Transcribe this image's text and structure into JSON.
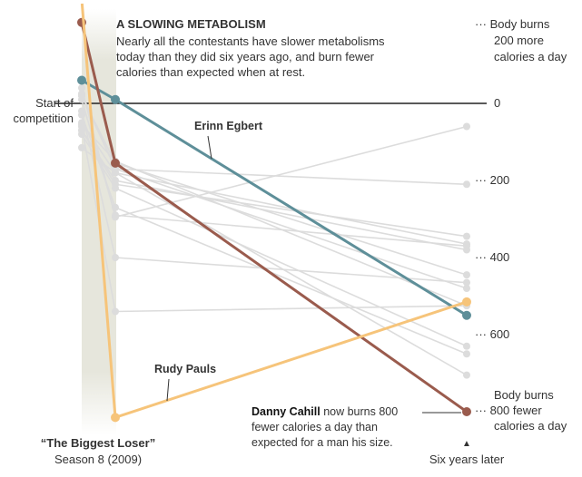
{
  "chart_data": {
    "type": "line",
    "title": "A SLOWING METABOLISM",
    "subtitle_lines": [
      "Nearly all the contestants have slower metabolisms",
      "today than they did six years ago, and burn fewer",
      "calories than expected when at rest."
    ],
    "x_labels": {
      "start": [
        "Start of",
        "competition"
      ],
      "finale": [
        "“The Biggest Loser”",
        "Season 8 (2009)"
      ],
      "later": "Six years later",
      "later_arrow": "▲"
    },
    "y_axis": {
      "ylim": [
        -240,
        800
      ],
      "inverted": true,
      "ticks": [
        {
          "value": 0,
          "label": "0"
        },
        {
          "value": 200,
          "label": "··· 200"
        },
        {
          "value": 400,
          "label": "··· 400"
        },
        {
          "value": 600,
          "label": "··· 600"
        }
      ],
      "top_note": [
        "··· Body burns",
        "200 more",
        "calories a day"
      ],
      "bottom_note": [
        "Body burns",
        "··· 800 fewer",
        "calories a day"
      ]
    },
    "series_gray": [
      {
        "values": [
          -20,
          155,
          445
        ]
      },
      {
        "values": [
          -20,
          170,
          480
        ]
      },
      {
        "values": [
          55,
          150,
          525
        ]
      },
      {
        "values": [
          80,
          220,
          630
        ]
      },
      {
        "values": [
          115,
          180,
          705
        ]
      },
      {
        "values": [
          50,
          180,
          365
        ]
      },
      {
        "values": [
          70,
          200,
          380
        ]
      },
      {
        "values": [
          30,
          270,
          650
        ]
      },
      {
        "values": [
          60,
          540,
          525
        ]
      },
      {
        "values": [
          -40,
          295,
          60
        ]
      },
      {
        "values": [
          -25,
          170,
          210
        ]
      },
      {
        "values": [
          -10,
          290,
          370
        ]
      },
      {
        "values": [
          20,
          400,
          465
        ]
      },
      {
        "values": [
          70,
          210,
          345
        ]
      }
    ],
    "series_highlight": [
      {
        "name": "Erinn Egbert",
        "color": "#5e8f99",
        "values": [
          -60,
          -10,
          550
        ]
      },
      {
        "name": "Danny Cahill",
        "color": "#9a5b4d",
        "values": [
          -210,
          155,
          800
        ]
      },
      {
        "name": "Rudy Pauls",
        "color": "#f6c47a",
        "values": [
          -270,
          815,
          515
        ]
      }
    ],
    "annotations": {
      "erinn": "Erinn Egbert",
      "rudy": "Rudy Pauls",
      "danny_name": "Danny Cahill",
      "danny_rest": " now burns 800",
      "danny_line2": "fewer calories a day than",
      "danny_line3": "expected for a man his size."
    }
  }
}
